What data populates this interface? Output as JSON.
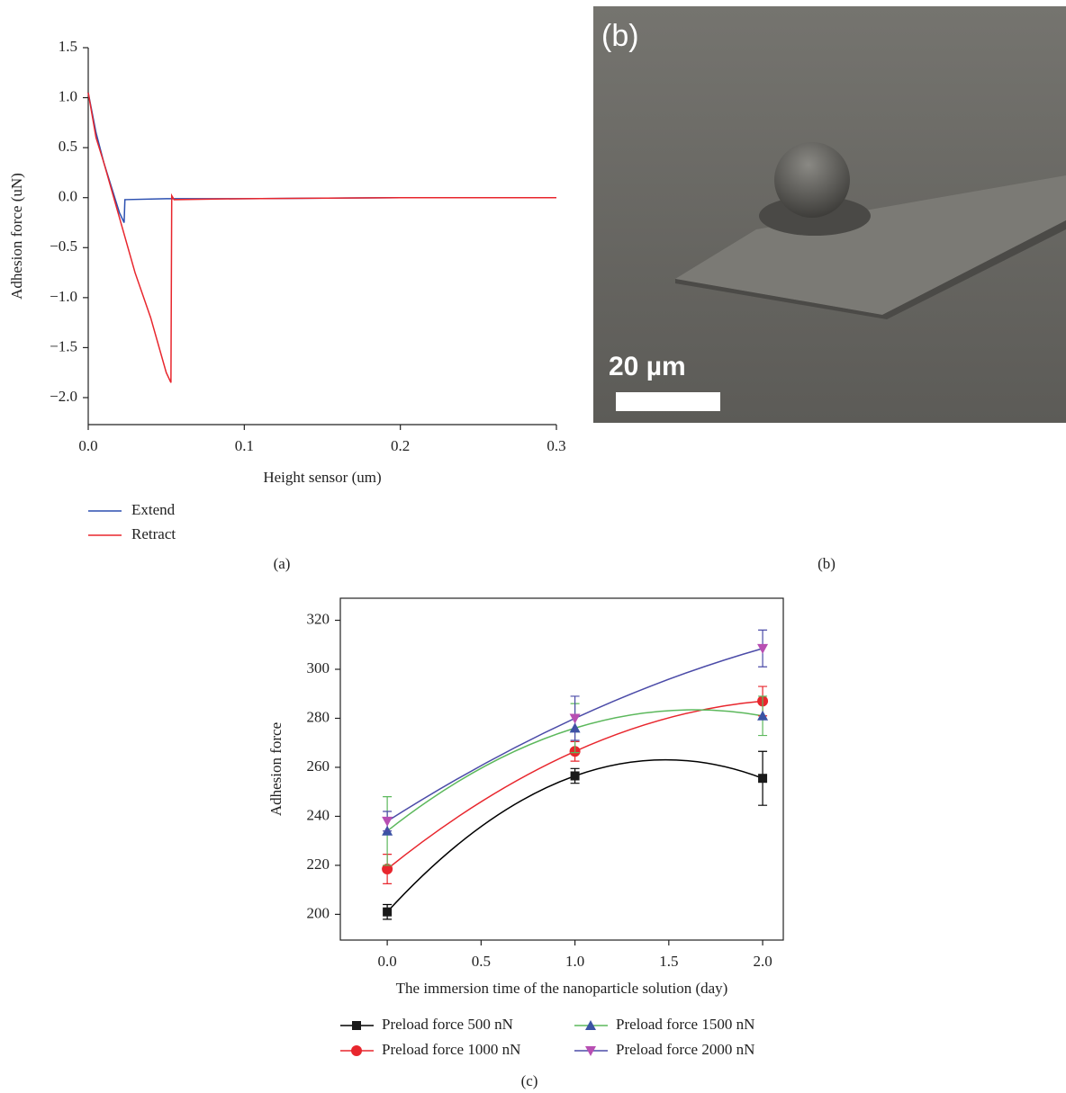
{
  "chart_data": [
    {
      "type": "line",
      "xlabel": "Height sensor (um)",
      "ylabel": "Adhesion force (uN)",
      "xlim": [
        0,
        0.3
      ],
      "ylim": [
        -2.27,
        1.5
      ],
      "xticks": [
        {
          "value": 0,
          "label": "0.0"
        },
        0.1,
        0.2,
        0.3
      ],
      "yticks": [
        1.5,
        {
          "value": 1,
          "label": "1.0"
        },
        0.5,
        {
          "value": 0,
          "label": "0.0"
        },
        {
          "value": -0.5,
          "label": "−0.5"
        },
        {
          "value": -1,
          "label": "−1.0"
        },
        {
          "value": -1.5,
          "label": "−1.5"
        },
        {
          "value": -2,
          "label": "−2.0"
        }
      ],
      "series": [
        {
          "name": "Extend",
          "color": "#2b4fb0",
          "x": [
            0,
            0.005,
            0.01,
            0.015,
            0.02,
            0.023,
            0.0235,
            0.05,
            0.1,
            0.2,
            0.3
          ],
          "values": [
            1.05,
            0.65,
            0.35,
            0.1,
            -0.15,
            -0.25,
            -0.02,
            -0.01,
            -0.01,
            0,
            0
          ]
        },
        {
          "name": "Retract",
          "color": "#e8262d",
          "x": [
            0,
            0.005,
            0.01,
            0.02,
            0.03,
            0.04,
            0.05,
            0.053,
            0.0535,
            0.055,
            0.1,
            0.2,
            0.3
          ],
          "values": [
            1.05,
            0.6,
            0.35,
            -0.2,
            -0.75,
            -1.2,
            -1.75,
            -1.85,
            0.02,
            -0.02,
            -0.01,
            0,
            0
          ]
        }
      ]
    },
    {
      "type": "line",
      "smooth": true,
      "xlabel": "The immersion time of the nanoparticle solution (day)",
      "ylabel": "Adhesion force",
      "xlim": [
        -0.25,
        2.11
      ],
      "ylim": [
        189.5,
        329
      ],
      "xticks": [
        {
          "value": 0,
          "label": "0.0"
        },
        0.5,
        {
          "value": 1,
          "label": "1.0"
        },
        1.5,
        {
          "value": 2,
          "label": "2.0"
        }
      ],
      "yticks": [
        200,
        220,
        240,
        260,
        280,
        300,
        320
      ],
      "series": [
        {
          "name": "Preload force 500 nN",
          "marker": "square",
          "color": "#1a1a1a",
          "line_color": "#000000",
          "x": [
            0,
            1,
            2
          ],
          "values": [
            201,
            256.5,
            255.5
          ],
          "errors": [
            3,
            3,
            11
          ]
        },
        {
          "name": "Preload force 1000 nN",
          "marker": "circle",
          "color": "#e8262d",
          "line_color": "#e8262d",
          "x": [
            0,
            1,
            2
          ],
          "values": [
            218.5,
            266.5,
            287
          ],
          "errors": [
            6,
            4,
            6
          ]
        },
        {
          "name": "Preload force 1500 nN",
          "marker": "triangle-up",
          "color": "#3b53a4",
          "line_color": "#5cb85c",
          "x": [
            0,
            1,
            2
          ],
          "values": [
            234,
            276,
            281
          ],
          "errors": [
            14,
            10,
            8
          ]
        },
        {
          "name": "Preload force 2000 nN",
          "marker": "triangle-down",
          "color": "#b84fb3",
          "line_color": "#4b4ba8",
          "x": [
            0,
            1,
            2
          ],
          "values": [
            238,
            280,
            308.5
          ],
          "errors": [
            4,
            9,
            7.5
          ]
        }
      ]
    }
  ],
  "image": {
    "panel_label": "(b)",
    "scale_bar_label": "20 µm"
  },
  "captions": [
    "(a)",
    "(b)",
    "(c)"
  ]
}
